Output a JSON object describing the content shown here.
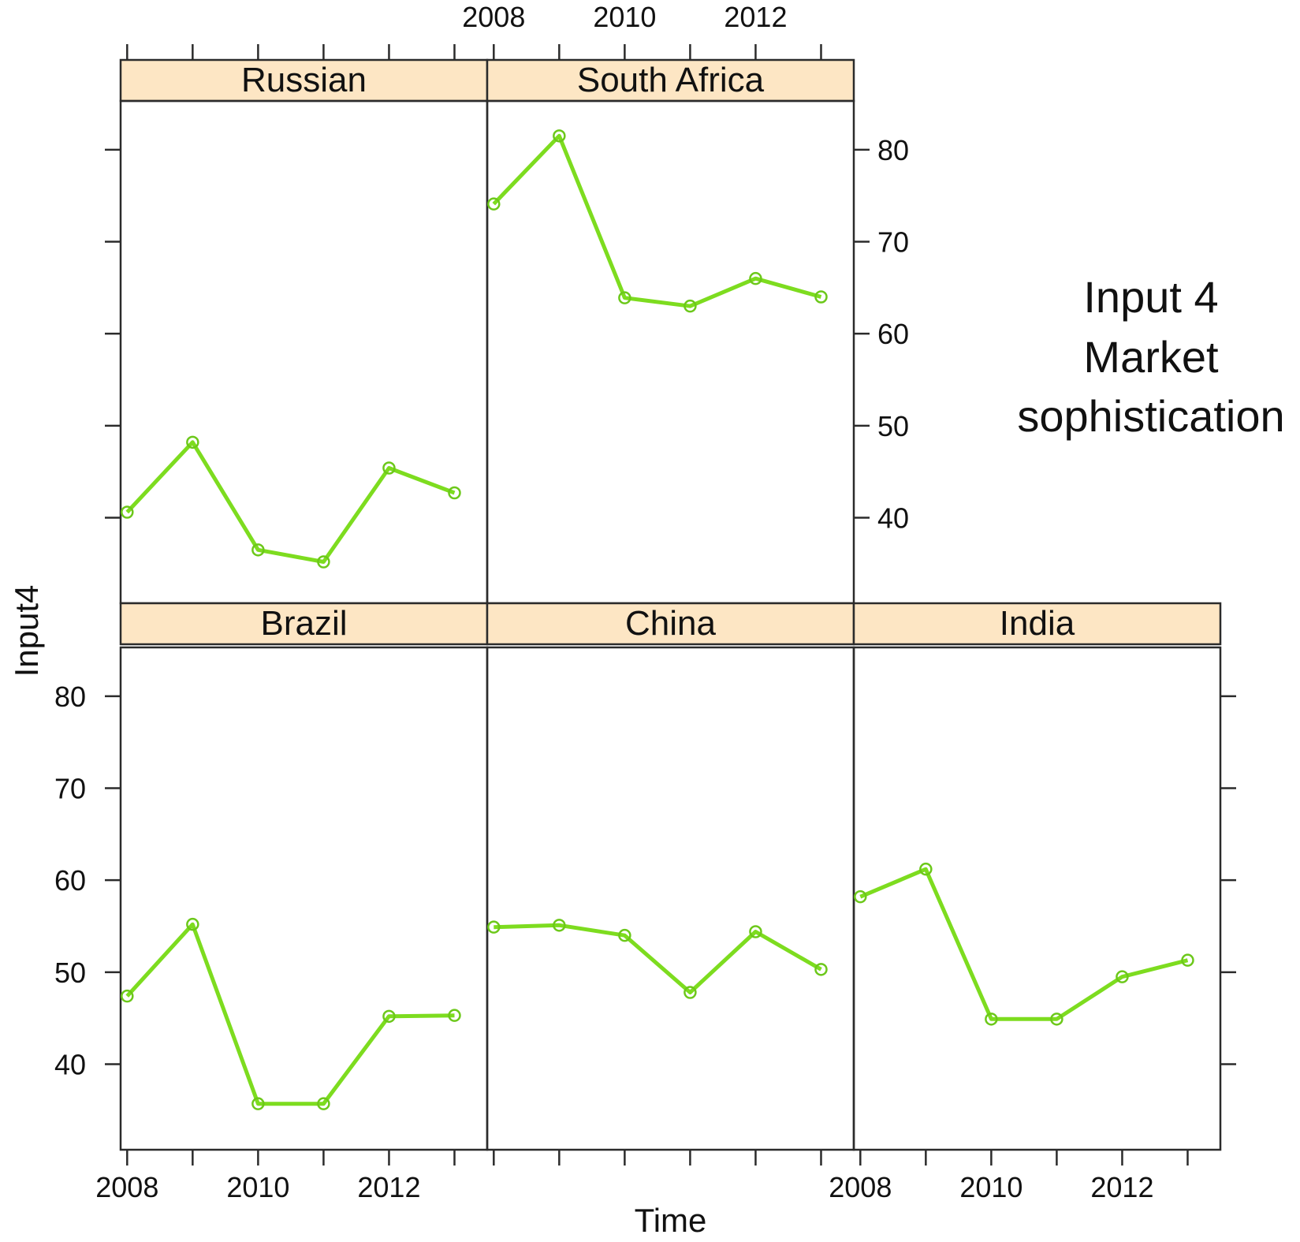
{
  "chart_data": {
    "type": "line",
    "layout": "lattice 3x2, top-right cell empty",
    "xlabel": "Time",
    "ylabel": "Input4",
    "annotation": [
      "Input 4",
      "Market",
      "sophistication"
    ],
    "x_ticks": [
      2008,
      2010,
      2012
    ],
    "y_ticks": [
      40,
      50,
      60,
      70,
      80
    ],
    "xlim": [
      2007.9,
      2013.5
    ],
    "ylim": [
      30.7,
      85.3
    ],
    "panels": [
      {
        "name": "Russian",
        "x": [
          2008,
          2009,
          2010,
          2011,
          2012,
          2013
        ],
        "values": [
          40.6,
          48.2,
          36.5,
          35.2,
          45.4,
          42.7
        ]
      },
      {
        "name": "South Africa",
        "x": [
          2008,
          2009,
          2010,
          2011,
          2012,
          2013
        ],
        "values": [
          74.1,
          81.5,
          63.9,
          63.0,
          66.0,
          64.0
        ]
      },
      {
        "name": "Brazil",
        "x": [
          2008,
          2009,
          2010,
          2011,
          2012,
          2013
        ],
        "values": [
          47.4,
          55.2,
          35.7,
          35.7,
          45.2,
          45.3
        ]
      },
      {
        "name": "China",
        "x": [
          2008,
          2009,
          2010,
          2011,
          2012,
          2013
        ],
        "values": [
          54.9,
          55.1,
          54.0,
          47.8,
          54.4,
          50.3
        ]
      },
      {
        "name": "India",
        "x": [
          2008,
          2009,
          2010,
          2011,
          2012,
          2013
        ],
        "values": [
          58.2,
          61.2,
          44.9,
          44.9,
          49.5,
          51.3
        ]
      }
    ],
    "line_color": "#7ddc1f",
    "strip_color": "#fde6c4"
  }
}
